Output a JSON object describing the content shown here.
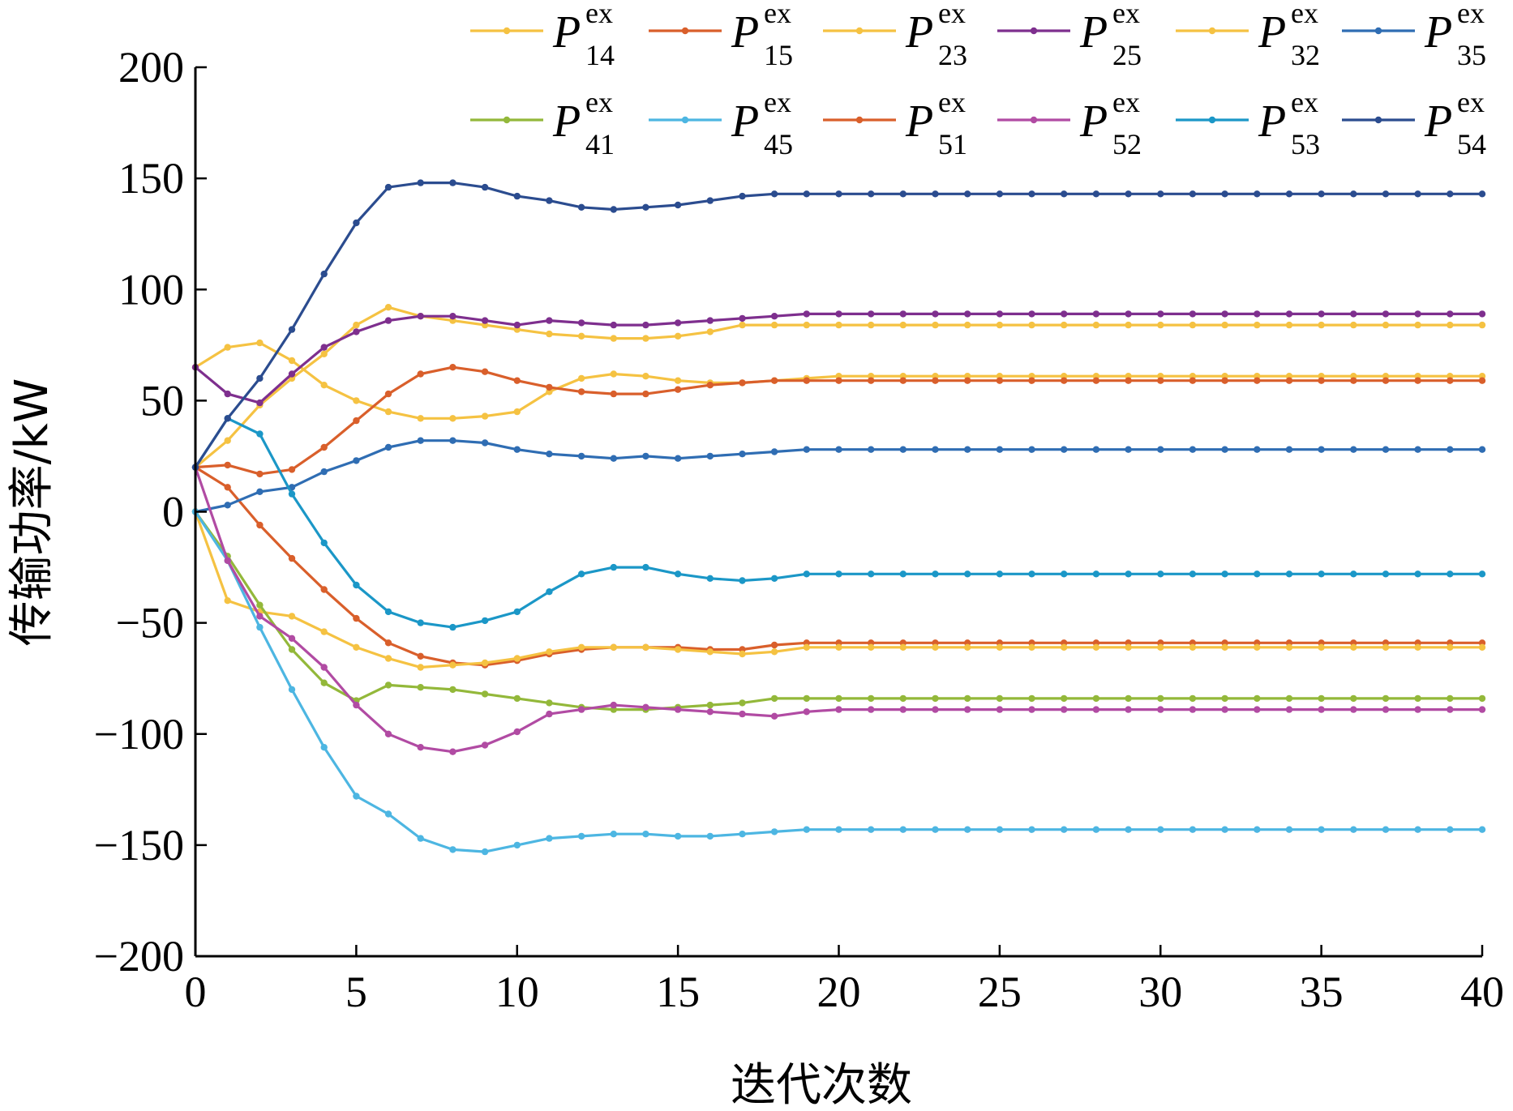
{
  "chart_data": {
    "type": "line",
    "title": "",
    "xlabel": "迭代次数",
    "ylabel": "传输功率/kW",
    "xlim": [
      0,
      40
    ],
    "ylim": [
      -200,
      200
    ],
    "xticks": [
      0,
      5,
      10,
      15,
      20,
      25,
      30,
      35,
      40
    ],
    "yticks": [
      -200,
      -150,
      -100,
      -50,
      0,
      50,
      100,
      150,
      200
    ],
    "xtick_labels": [
      "0",
      "5",
      "10",
      "15",
      "20",
      "25",
      "30",
      "35",
      "40"
    ],
    "ytick_labels": [
      "−200",
      "−150",
      "−100",
      "−50",
      "0",
      "50",
      "100",
      "150",
      "200"
    ],
    "grid": false,
    "legend_position": "top",
    "x": [
      0,
      1,
      2,
      3,
      4,
      5,
      6,
      7,
      8,
      9,
      10,
      11,
      12,
      13,
      14,
      15,
      16,
      17,
      18,
      19,
      20,
      21,
      22,
      23,
      24,
      25,
      26,
      27,
      28,
      29,
      30,
      31,
      32,
      33,
      34,
      35,
      36,
      37,
      38,
      39,
      40
    ],
    "series": [
      {
        "name": "P",
        "sup": "ex",
        "sub": "14",
        "color": "#F5C242",
        "values": [
          65,
          74,
          76,
          68,
          57,
          50,
          45,
          42,
          42,
          43,
          45,
          54,
          60,
          62,
          61,
          59,
          58,
          58,
          59,
          60,
          61,
          61,
          61,
          61,
          61,
          61,
          61,
          61,
          61,
          61,
          61,
          61,
          61,
          61,
          61,
          61,
          61,
          61,
          61,
          61,
          61
        ]
      },
      {
        "name": "P",
        "sup": "ex",
        "sub": "15",
        "color": "#D95F2B",
        "values": [
          20,
          11,
          -6,
          -21,
          -35,
          -48,
          -59,
          -65,
          -68,
          -69,
          -67,
          -64,
          -62,
          -61,
          -61,
          -61,
          -62,
          -62,
          -60,
          -59,
          -59,
          -59,
          -59,
          -59,
          -59,
          -59,
          -59,
          -59,
          -59,
          -59,
          -59,
          -59,
          -59,
          -59,
          -59,
          -59,
          -59,
          -59,
          -59,
          -59,
          -59
        ]
      },
      {
        "name": "P",
        "sup": "ex",
        "sub": "23",
        "color": "#F5C242",
        "values": [
          20,
          32,
          48,
          60,
          71,
          84,
          92,
          88,
          86,
          84,
          82,
          80,
          79,
          78,
          78,
          79,
          81,
          84,
          84,
          84,
          84,
          84,
          84,
          84,
          84,
          84,
          84,
          84,
          84,
          84,
          84,
          84,
          84,
          84,
          84,
          84,
          84,
          84,
          84,
          84,
          84
        ]
      },
      {
        "name": "P",
        "sup": "ex",
        "sub": "25",
        "color": "#7E2F8E",
        "values": [
          65,
          53,
          49,
          62,
          74,
          81,
          86,
          88,
          88,
          86,
          84,
          86,
          85,
          84,
          84,
          85,
          86,
          87,
          88,
          89,
          89,
          89,
          89,
          89,
          89,
          89,
          89,
          89,
          89,
          89,
          89,
          89,
          89,
          89,
          89,
          89,
          89,
          89,
          89,
          89,
          89
        ]
      },
      {
        "name": "P",
        "sup": "ex",
        "sub": "32",
        "color": "#F5C242",
        "values": [
          0,
          -40,
          -45,
          -47,
          -54,
          -61,
          -66,
          -70,
          -69,
          -68,
          -66,
          -63,
          -61,
          -61,
          -61,
          -62,
          -63,
          -64,
          -63,
          -61,
          -61,
          -61,
          -61,
          -61,
          -61,
          -61,
          -61,
          -61,
          -61,
          -61,
          -61,
          -61,
          -61,
          -61,
          -61,
          -61,
          -61,
          -61,
          -61,
          -61,
          -61
        ]
      },
      {
        "name": "P",
        "sup": "ex",
        "sub": "35",
        "color": "#2F6DB3",
        "values": [
          0,
          3,
          9,
          11,
          18,
          23,
          29,
          32,
          32,
          31,
          28,
          26,
          25,
          24,
          25,
          24,
          25,
          26,
          27,
          28,
          28,
          28,
          28,
          28,
          28,
          28,
          28,
          28,
          28,
          28,
          28,
          28,
          28,
          28,
          28,
          28,
          28,
          28,
          28,
          28,
          28
        ]
      },
      {
        "name": "P",
        "sup": "ex",
        "sub": "41",
        "color": "#93B83A",
        "values": [
          0,
          -20,
          -42,
          -62,
          -77,
          -85,
          -78,
          -79,
          -80,
          -82,
          -84,
          -86,
          -88,
          -89,
          -89,
          -88,
          -87,
          -86,
          -84,
          -84,
          -84,
          -84,
          -84,
          -84,
          -84,
          -84,
          -84,
          -84,
          -84,
          -84,
          -84,
          -84,
          -84,
          -84,
          -84,
          -84,
          -84,
          -84,
          -84,
          -84,
          -84
        ]
      },
      {
        "name": "P",
        "sup": "ex",
        "sub": "45",
        "color": "#4DB6E2",
        "values": [
          0,
          -22,
          -52,
          -80,
          -106,
          -128,
          -136,
          -147,
          -152,
          -153,
          -150,
          -147,
          -146,
          -145,
          -145,
          -146,
          -146,
          -145,
          -144,
          -143,
          -143,
          -143,
          -143,
          -143,
          -143,
          -143,
          -143,
          -143,
          -143,
          -143,
          -143,
          -143,
          -143,
          -143,
          -143,
          -143,
          -143,
          -143,
          -143,
          -143,
          -143
        ]
      },
      {
        "name": "P",
        "sup": "ex",
        "sub": "51",
        "color": "#D95F2B",
        "values": [
          20,
          21,
          17,
          19,
          29,
          41,
          53,
          62,
          65,
          63,
          59,
          56,
          54,
          53,
          53,
          55,
          57,
          58,
          59,
          59,
          59,
          59,
          59,
          59,
          59,
          59,
          59,
          59,
          59,
          59,
          59,
          59,
          59,
          59,
          59,
          59,
          59,
          59,
          59,
          59,
          59
        ]
      },
      {
        "name": "P",
        "sup": "ex",
        "sub": "52",
        "color": "#B14BA3",
        "values": [
          20,
          -22,
          -47,
          -57,
          -70,
          -87,
          -100,
          -106,
          -108,
          -105,
          -99,
          -91,
          -89,
          -87,
          -88,
          -89,
          -90,
          -91,
          -92,
          -90,
          -89,
          -89,
          -89,
          -89,
          -89,
          -89,
          -89,
          -89,
          -89,
          -89,
          -89,
          -89,
          -89,
          -89,
          -89,
          -89,
          -89,
          -89,
          -89,
          -89,
          -89
        ]
      },
      {
        "name": "P",
        "sup": "ex",
        "sub": "53",
        "color": "#1B97C7",
        "values": [
          20,
          42,
          35,
          8,
          -14,
          -33,
          -45,
          -50,
          -52,
          -49,
          -45,
          -36,
          -28,
          -25,
          -25,
          -28,
          -30,
          -31,
          -30,
          -28,
          -28,
          -28,
          -28,
          -28,
          -28,
          -28,
          -28,
          -28,
          -28,
          -28,
          -28,
          -28,
          -28,
          -28,
          -28,
          -28,
          -28,
          -28,
          -28,
          -28,
          -28
        ]
      },
      {
        "name": "P",
        "sup": "ex",
        "sub": "54",
        "color": "#2B4C8F",
        "values": [
          20,
          42,
          60,
          82,
          107,
          130,
          146,
          148,
          148,
          146,
          142,
          140,
          137,
          136,
          137,
          138,
          140,
          142,
          143,
          143,
          143,
          143,
          143,
          143,
          143,
          143,
          143,
          143,
          143,
          143,
          143,
          143,
          143,
          143,
          143,
          143,
          143,
          143,
          143,
          143,
          143
        ]
      }
    ]
  }
}
